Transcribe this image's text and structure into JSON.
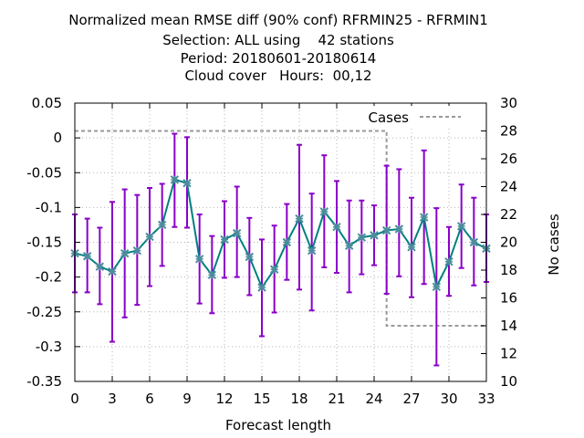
{
  "chart_data": {
    "type": "line",
    "title_lines": [
      "Normalized mean RMSE diff (90% conf) RFRMIN25 - RFRMIN1",
      "Selection: ALL using    42 stations",
      "Period: 20180601-20180614",
      "Cloud cover   Hours:  00,12"
    ],
    "xlabel": "Forecast length",
    "ylabel": "",
    "y2label": "No cases",
    "xlim": [
      0,
      33
    ],
    "ylim": [
      -0.35,
      0.05
    ],
    "y2lim": [
      10,
      30
    ],
    "x_ticks": [
      0,
      3,
      6,
      9,
      12,
      15,
      18,
      21,
      24,
      27,
      30,
      33
    ],
    "x_tick_labels": [
      "0",
      "3",
      "6",
      "9",
      "12",
      "15",
      "18",
      "21",
      "24",
      "27",
      "30",
      "33"
    ],
    "y_ticks": [
      0.05,
      0,
      -0.05,
      -0.1,
      -0.15,
      -0.2,
      -0.25,
      -0.3,
      -0.35
    ],
    "y_tick_labels": [
      "0.05",
      "0",
      "-0.05",
      "-0.1",
      "-0.15",
      "-0.2",
      "-0.25",
      "-0.3",
      "-0.35"
    ],
    "y2_ticks": [
      30,
      28,
      26,
      24,
      22,
      20,
      18,
      16,
      14,
      12,
      10
    ],
    "y2_tick_labels": [
      "30",
      "28",
      "26",
      "24",
      "22",
      "20",
      "18",
      "16",
      "14",
      "12",
      "10"
    ],
    "grid": true,
    "legend": {
      "position": "top-right",
      "entries": [
        "Cases"
      ]
    },
    "colors": {
      "line": "#008080",
      "marker": "#4c8c9c",
      "errorbar": "#8a00c8",
      "cases": "#999999",
      "grid": "#b4b4b4"
    },
    "series": [
      {
        "type": "line-errorbar",
        "x": [
          0,
          1,
          2,
          3,
          4,
          5,
          6,
          7,
          8,
          9,
          10,
          11,
          12,
          13,
          14,
          15,
          16,
          17,
          18,
          19,
          20,
          21,
          22,
          23,
          24,
          25,
          26,
          27,
          28,
          29,
          30,
          31,
          32,
          33
        ],
        "y": [
          -0.166,
          -0.17,
          -0.185,
          -0.192,
          -0.166,
          -0.162,
          -0.142,
          -0.125,
          -0.06,
          -0.065,
          -0.174,
          -0.197,
          -0.146,
          -0.137,
          -0.171,
          -0.215,
          -0.189,
          -0.15,
          -0.116,
          -0.162,
          -0.106,
          -0.128,
          -0.155,
          -0.143,
          -0.14,
          -0.133,
          -0.131,
          -0.157,
          -0.114,
          -0.214,
          -0.178,
          -0.127,
          -0.15,
          -0.159
        ],
        "y_low": [
          -0.222,
          -0.222,
          -0.239,
          -0.293,
          -0.258,
          -0.24,
          -0.213,
          -0.184,
          -0.128,
          -0.129,
          -0.238,
          -0.252,
          -0.201,
          -0.2,
          -0.226,
          -0.285,
          -0.251,
          -0.204,
          -0.218,
          -0.248,
          -0.186,
          -0.194,
          -0.222,
          -0.196,
          -0.183,
          -0.224,
          -0.199,
          -0.229,
          -0.21,
          -0.327,
          -0.227,
          -0.187,
          -0.212,
          -0.207
        ],
        "y_high": [
          -0.11,
          -0.116,
          -0.129,
          -0.092,
          -0.074,
          -0.082,
          -0.072,
          -0.066,
          0.006,
          0.001,
          -0.11,
          -0.141,
          -0.091,
          -0.07,
          -0.115,
          -0.146,
          -0.126,
          -0.095,
          -0.01,
          -0.08,
          -0.025,
          -0.062,
          -0.09,
          -0.09,
          -0.097,
          -0.04,
          -0.045,
          -0.086,
          -0.018,
          -0.101,
          -0.128,
          -0.067,
          -0.086,
          -0.11
        ]
      },
      {
        "name": "Cases",
        "type": "step",
        "axis": "y2",
        "x": [
          0,
          1,
          2,
          3,
          4,
          5,
          6,
          7,
          8,
          9,
          10,
          11,
          12,
          13,
          14,
          15,
          16,
          17,
          18,
          19,
          20,
          21,
          22,
          23,
          24,
          25,
          26,
          27,
          28,
          29,
          30,
          31,
          32,
          33
        ],
        "y": [
          28,
          28,
          28,
          28,
          28,
          28,
          28,
          28,
          28,
          28,
          28,
          28,
          28,
          28,
          28,
          28,
          28,
          28,
          28,
          28,
          28,
          28,
          28,
          28,
          28,
          14,
          14,
          14,
          14,
          14,
          14,
          14,
          14,
          14
        ]
      }
    ]
  }
}
